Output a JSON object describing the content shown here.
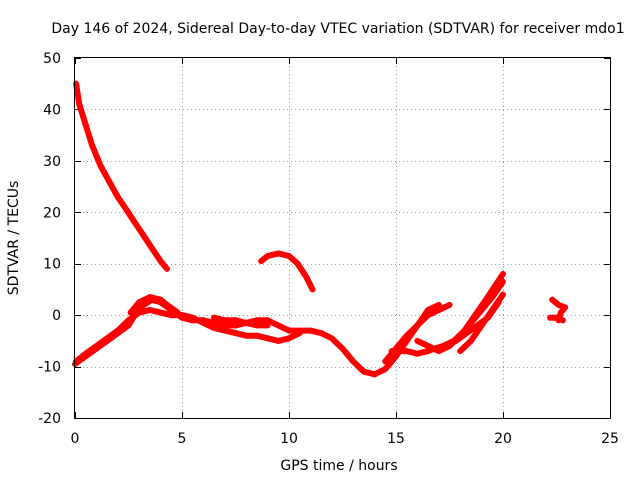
{
  "chart_data": {
    "type": "scatter",
    "title": "Day 146 of 2024, Sidereal Day-to-day VTEC variation (SDTVAR) for receiver mdo1",
    "xlabel": "GPS time / hours",
    "ylabel": "SDTVAR / TECUs",
    "xlim": [
      0,
      25
    ],
    "ylim": [
      -20,
      50
    ],
    "xticks": [
      0,
      5,
      10,
      15,
      20,
      25
    ],
    "yticks": [
      -20,
      -10,
      0,
      10,
      20,
      30,
      40,
      50
    ],
    "grid": true,
    "color": "#ff0000",
    "series": [
      {
        "name": "arc-1",
        "points": [
          [
            0.05,
            45
          ],
          [
            0.2,
            41
          ],
          [
            0.5,
            37
          ],
          [
            0.8,
            33
          ],
          [
            1.2,
            29
          ],
          [
            1.6,
            26
          ],
          [
            2.0,
            23
          ],
          [
            2.4,
            20.5
          ],
          [
            2.8,
            18
          ],
          [
            3.2,
            15.5
          ],
          [
            3.6,
            13
          ],
          [
            4.0,
            10.5
          ],
          [
            4.3,
            9
          ]
        ]
      },
      {
        "name": "arc-2",
        "points": [
          [
            8.7,
            10.5
          ],
          [
            9.0,
            11.5
          ],
          [
            9.5,
            12
          ],
          [
            10.0,
            11.5
          ],
          [
            10.4,
            10
          ],
          [
            10.8,
            7.5
          ],
          [
            11.1,
            5
          ]
        ]
      },
      {
        "name": "arc-3",
        "points": [
          [
            0.0,
            -9.5
          ],
          [
            0.5,
            -8
          ],
          [
            1.0,
            -6.5
          ],
          [
            1.5,
            -5
          ],
          [
            2.0,
            -3.5
          ],
          [
            2.5,
            -2
          ],
          [
            2.8,
            0
          ],
          [
            3.2,
            2
          ],
          [
            3.6,
            3
          ],
          [
            4.0,
            2.5
          ],
          [
            4.5,
            1
          ],
          [
            5.0,
            -0.5
          ],
          [
            5.5,
            -1
          ],
          [
            6.0,
            -1
          ],
          [
            6.5,
            -1.5
          ],
          [
            7.0,
            -2
          ],
          [
            7.5,
            -2
          ],
          [
            8.0,
            -1.5
          ],
          [
            8.5,
            -1
          ],
          [
            9.0,
            -1
          ],
          [
            9.5,
            -2
          ],
          [
            10.0,
            -3
          ],
          [
            10.5,
            -3
          ],
          [
            11.0,
            -3
          ],
          [
            11.5,
            -3.5
          ],
          [
            12.0,
            -4.5
          ],
          [
            12.5,
            -6.5
          ],
          [
            13.0,
            -9
          ],
          [
            13.5,
            -11
          ],
          [
            14.0,
            -11.5
          ],
          [
            14.5,
            -10.5
          ],
          [
            15.0,
            -8
          ],
          [
            15.5,
            -5
          ],
          [
            16.0,
            -2
          ],
          [
            16.5,
            1
          ],
          [
            17.0,
            2
          ]
        ]
      },
      {
        "name": "arc-4",
        "points": [
          [
            0.05,
            -9
          ],
          [
            0.5,
            -7.5
          ],
          [
            1.0,
            -6
          ],
          [
            1.5,
            -4.5
          ],
          [
            2.0,
            -3
          ],
          [
            2.5,
            -1
          ],
          [
            3.0,
            0.5
          ],
          [
            3.5,
            1
          ],
          [
            4.0,
            0.5
          ],
          [
            4.5,
            0
          ],
          [
            5.0,
            0
          ],
          [
            5.5,
            -0.5
          ],
          [
            6.0,
            -1.5
          ],
          [
            6.5,
            -2.5
          ],
          [
            7.0,
            -3
          ],
          [
            7.5,
            -3.5
          ],
          [
            8.0,
            -4
          ],
          [
            8.5,
            -4
          ],
          [
            9.0,
            -4.5
          ],
          [
            9.5,
            -5
          ],
          [
            10.0,
            -4.5
          ],
          [
            10.5,
            -3.5
          ]
        ]
      },
      {
        "name": "arc-5",
        "points": [
          [
            2.6,
            0.5
          ],
          [
            3.0,
            2.5
          ],
          [
            3.5,
            3.5
          ],
          [
            4.0,
            3
          ],
          [
            4.3,
            2
          ],
          [
            4.8,
            0.5
          ]
        ]
      },
      {
        "name": "arc-6",
        "points": [
          [
            6.5,
            -0.5
          ],
          [
            7.0,
            -1
          ],
          [
            7.5,
            -1
          ],
          [
            8.0,
            -1.5
          ],
          [
            8.5,
            -2
          ],
          [
            9.0,
            -2
          ]
        ]
      },
      {
        "name": "arc-7",
        "points": [
          [
            14.5,
            -9
          ],
          [
            15.0,
            -6.5
          ],
          [
            15.5,
            -4
          ],
          [
            16.0,
            -2
          ],
          [
            16.5,
            0
          ],
          [
            17.0,
            1
          ],
          [
            17.5,
            2
          ]
        ]
      },
      {
        "name": "arc-8",
        "points": [
          [
            14.8,
            -7
          ],
          [
            15.5,
            -7
          ],
          [
            16.0,
            -7.5
          ],
          [
            16.5,
            -7
          ],
          [
            16.8,
            -6.5
          ],
          [
            17.2,
            -6
          ],
          [
            17.7,
            -5
          ],
          [
            18.2,
            -3
          ],
          [
            18.7,
            0
          ],
          [
            19.2,
            3
          ],
          [
            19.6,
            5.5
          ],
          [
            20.0,
            8
          ]
        ]
      },
      {
        "name": "arc-9",
        "points": [
          [
            16.0,
            -5
          ],
          [
            16.5,
            -6
          ],
          [
            17.0,
            -7
          ],
          [
            17.5,
            -6
          ],
          [
            18.0,
            -4
          ],
          [
            18.5,
            -1.5
          ],
          [
            19.0,
            1
          ],
          [
            19.5,
            3.5
          ],
          [
            20.0,
            6.5
          ]
        ]
      },
      {
        "name": "arc-10",
        "points": [
          [
            18.0,
            -7
          ],
          [
            18.5,
            -5
          ],
          [
            19.0,
            -2
          ],
          [
            19.5,
            1
          ],
          [
            20.0,
            4
          ]
        ]
      },
      {
        "name": "arc-11",
        "points": [
          [
            17.8,
            -5
          ],
          [
            18.3,
            -3.5
          ],
          [
            18.8,
            -2
          ],
          [
            19.3,
            -0.5
          ],
          [
            19.8,
            2.5
          ]
        ]
      },
      {
        "name": "arc-12",
        "points": [
          [
            22.3,
            3
          ],
          [
            22.6,
            2
          ],
          [
            22.9,
            1.5
          ],
          [
            22.7,
            0.5
          ],
          [
            22.6,
            -1
          ]
        ]
      },
      {
        "name": "arc-13",
        "points": [
          [
            22.2,
            -0.5
          ],
          [
            22.5,
            -0.5
          ],
          [
            22.8,
            -1
          ]
        ]
      }
    ]
  }
}
